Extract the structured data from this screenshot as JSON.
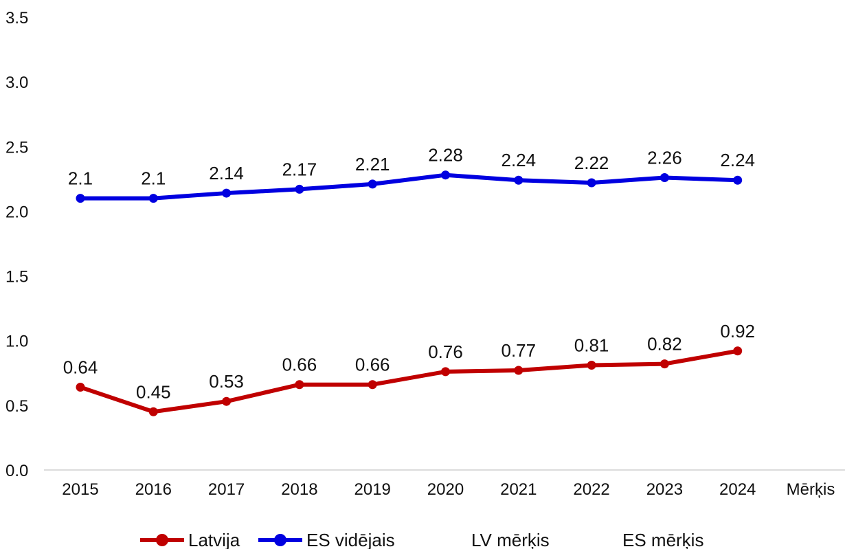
{
  "chart_data": {
    "type": "line",
    "title": "",
    "xlabel": "",
    "ylabel": "",
    "categories": [
      "2015",
      "2016",
      "2017",
      "2018",
      "2019",
      "2020",
      "2021",
      "2022",
      "2023",
      "2024",
      "Mērķis"
    ],
    "ylim": [
      0,
      3.5
    ],
    "yticks": [
      "0.0",
      "0.5",
      "1.0",
      "1.5",
      "2.0",
      "2.5",
      "3.0",
      "3.5"
    ],
    "grid": false,
    "legend_position": "bottom",
    "series": [
      {
        "name": "Latvija",
        "color": "#c00000",
        "values": [
          0.64,
          0.45,
          0.53,
          0.66,
          0.66,
          0.76,
          0.77,
          0.81,
          0.82,
          0.92,
          null
        ],
        "labels": [
          "0.64",
          "0.45",
          "0.53",
          "0.66",
          "0.66",
          "0.76",
          "0.77",
          "0.81",
          "0.82",
          "0.92",
          ""
        ]
      },
      {
        "name": "ES vidējais",
        "color": "#0000e0",
        "values": [
          2.1,
          2.1,
          2.14,
          2.17,
          2.21,
          2.28,
          2.24,
          2.22,
          2.26,
          2.24,
          null
        ],
        "labels": [
          "2.1",
          "2.1",
          "2.14",
          "2.17",
          "2.21",
          "2.28",
          "2.24",
          "2.22",
          "2.26",
          "2.24",
          ""
        ]
      },
      {
        "name": "LV mērķis",
        "color": "#ffffff",
        "values": [
          null,
          null,
          null,
          null,
          null,
          null,
          null,
          null,
          null,
          null,
          null
        ],
        "labels": []
      },
      {
        "name": "ES mērķis",
        "color": "#ffffff",
        "values": [
          null,
          null,
          null,
          null,
          null,
          null,
          null,
          null,
          null,
          null,
          null
        ],
        "labels": []
      }
    ]
  }
}
